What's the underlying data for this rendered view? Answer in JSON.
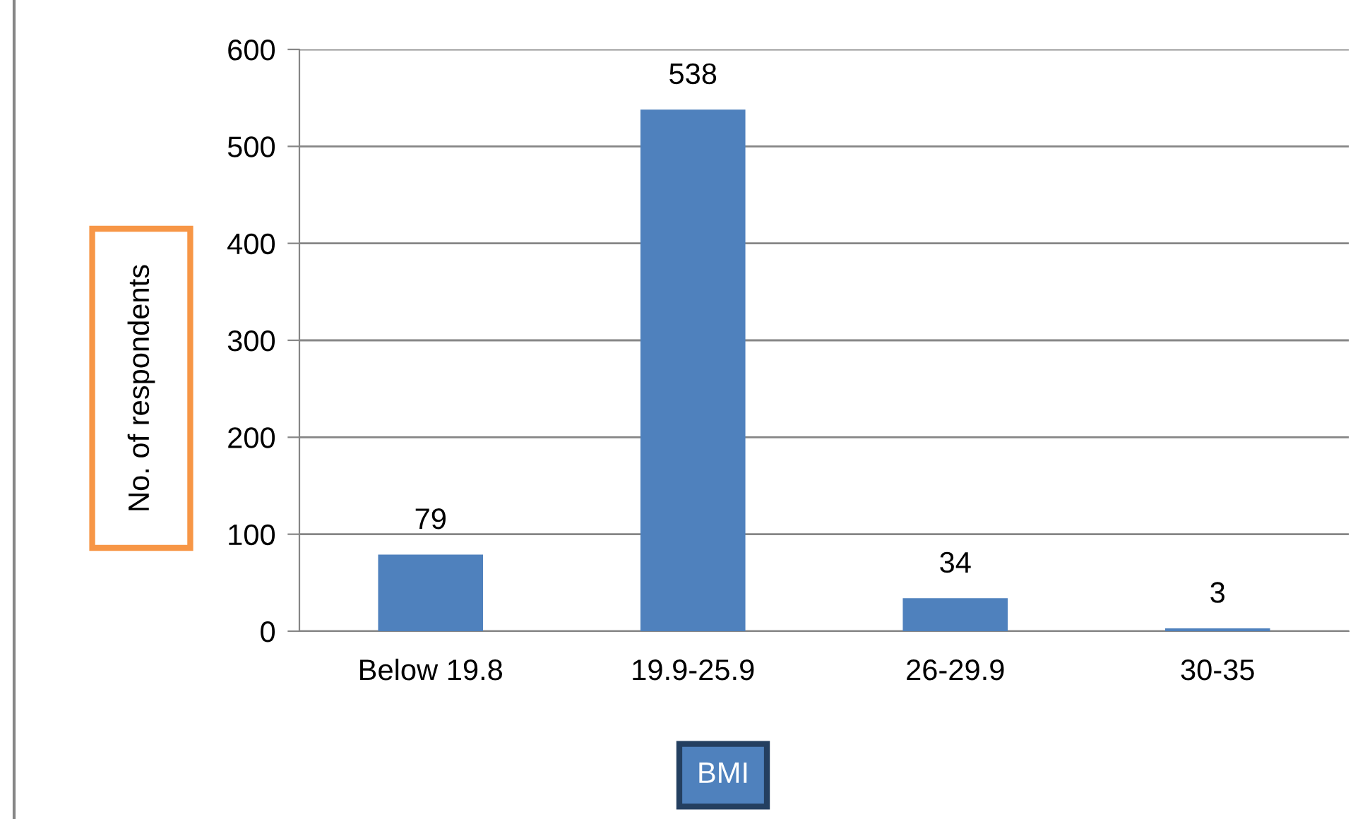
{
  "chart_data": {
    "type": "bar",
    "xlabel": "BMI",
    "ylabel": "No. of respondents",
    "categories": [
      "Below 19.8",
      "19.9-25.9",
      "26-29.9",
      "30-35"
    ],
    "values": [
      79,
      538,
      34,
      3
    ],
    "color": "#4f81bd",
    "ylim": [
      0,
      600
    ],
    "yticks": [
      0,
      100,
      200,
      300,
      400,
      500,
      600
    ],
    "grid": "y",
    "data_labels": true
  }
}
